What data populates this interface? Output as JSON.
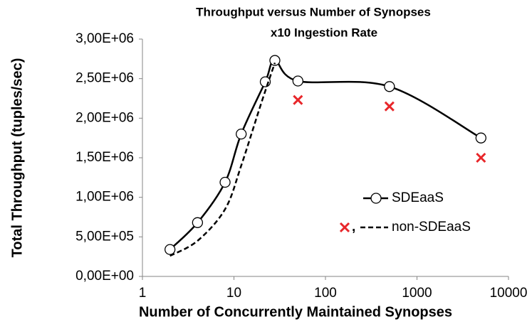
{
  "chart_data": {
    "type": "line",
    "title": "Throughput versus Number of Synopses",
    "subtitle": "x10 Ingestion Rate",
    "x_label": "Number of Concurrently Maintained Synopses",
    "y_label": "Total Throughput (tuples/sec)",
    "x_log": true,
    "xlim": [
      1,
      10000
    ],
    "xticks": [
      1,
      10,
      100,
      1000,
      10000
    ],
    "ylim": [
      0,
      3000000
    ],
    "yticks": [
      {
        "value": 0,
        "label": "0,00E+00"
      },
      {
        "value": 500000,
        "label": "5,00E+05"
      },
      {
        "value": 1000000,
        "label": "1,00E+06"
      },
      {
        "value": 1500000,
        "label": "1,50E+06"
      },
      {
        "value": 2000000,
        "label": "2,00E+06"
      },
      {
        "value": 2500000,
        "label": "2,50E+06"
      },
      {
        "value": 3000000,
        "label": "3,00E+06"
      }
    ],
    "grid": false,
    "legend_separator": ",",
    "series": [
      {
        "name": "SDEaaS",
        "color": "#000000",
        "dashed": false,
        "marker": "circle",
        "x": [
          2,
          4,
          8,
          12,
          22,
          28,
          50,
          500,
          5000
        ],
        "values": [
          340000,
          680000,
          1190000,
          1800000,
          2460000,
          2730000,
          2470000,
          2400000,
          1750000
        ]
      },
      {
        "name": "non-SDEaaS",
        "color": "#000000",
        "dashed": true,
        "x": [
          2,
          4,
          8,
          12,
          20,
          28
        ],
        "values": [
          260000,
          450000,
          850000,
          1400000,
          2200000,
          2700000
        ],
        "markers": {
          "color": "#e8262a",
          "x": [
            50,
            500,
            5000
          ],
          "values": [
            2230000,
            2150000,
            1500000
          ]
        }
      }
    ]
  }
}
